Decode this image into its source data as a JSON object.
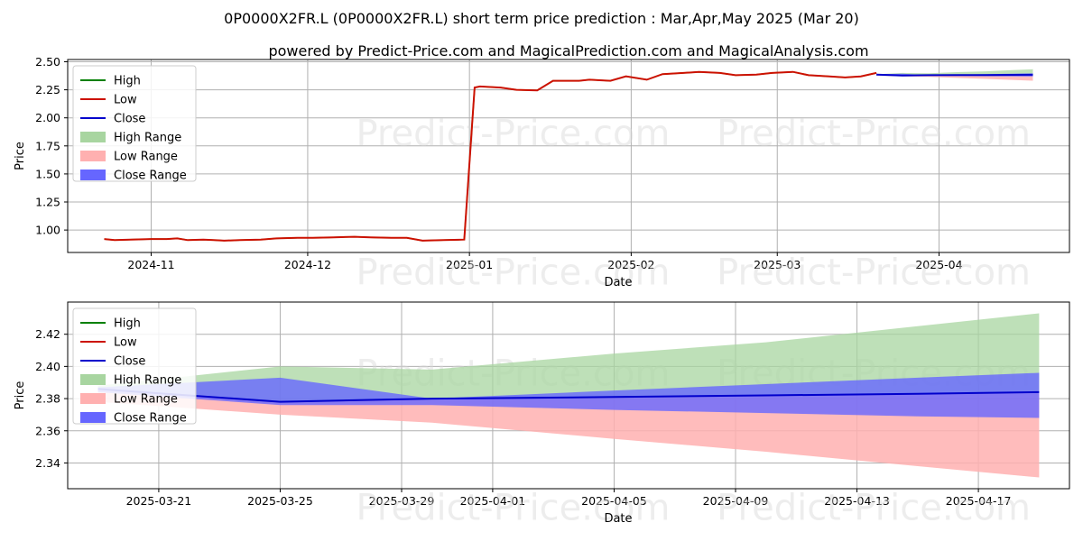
{
  "title": "0P0000X2FR.L (0P0000X2FR.L) short term price prediction : Mar,Apr,May 2025 (Mar 20)",
  "subtitle": "powered by Predict-Price.com and MagicalPrediction.com and MagicalAnalysis.com",
  "watermark": "Predict-Price.com",
  "colors": {
    "high": "#008000",
    "low": "#cc1100",
    "close": "#0000cc",
    "high_range": "#a8d5a0",
    "low_range": "#ffb0b0",
    "close_range": "#6666ff"
  },
  "legend": [
    "High",
    "Low",
    "Close",
    "High Range",
    "Low Range",
    "Close Range"
  ],
  "chart_data": [
    {
      "type": "line",
      "xlabel": "Date",
      "ylabel": "Price",
      "xlim": [
        "2024-10-16",
        "2025-04-26"
      ],
      "ylim": [
        0.8,
        2.52
      ],
      "x_ticks": [
        "2024-11",
        "2024-12",
        "2025-01",
        "2025-02",
        "2025-03",
        "2025-04"
      ],
      "y_ticks": [
        "1.00",
        "1.25",
        "1.50",
        "1.75",
        "2.00",
        "2.25",
        "2.50"
      ],
      "grid": true,
      "legend_position": "top-left",
      "history": {
        "dates": [
          "2024-10-23",
          "2024-10-25",
          "2024-10-28",
          "2024-11-01",
          "2024-11-04",
          "2024-11-06",
          "2024-11-08",
          "2024-11-11",
          "2024-11-13",
          "2024-11-15",
          "2024-11-18",
          "2024-11-22",
          "2024-11-25",
          "2024-11-29",
          "2024-12-02",
          "2024-12-06",
          "2024-12-10",
          "2024-12-13",
          "2024-12-17",
          "2024-12-20",
          "2024-12-23",
          "2024-12-27",
          "2024-12-31",
          "2025-01-02",
          "2025-01-03",
          "2025-01-07",
          "2025-01-10",
          "2025-01-14",
          "2025-01-17",
          "2025-01-22",
          "2025-01-24",
          "2025-01-28",
          "2025-01-31",
          "2025-02-04",
          "2025-02-07",
          "2025-02-11",
          "2025-02-14",
          "2025-02-18",
          "2025-02-21",
          "2025-02-25",
          "2025-02-28",
          "2025-03-04",
          "2025-03-07",
          "2025-03-11",
          "2025-03-14",
          "2025-03-17",
          "2025-03-20"
        ],
        "values": [
          0.92,
          0.91,
          0.915,
          0.92,
          0.92,
          0.925,
          0.91,
          0.915,
          0.91,
          0.905,
          0.91,
          0.915,
          0.925,
          0.93,
          0.93,
          0.935,
          0.94,
          0.935,
          0.93,
          0.93,
          0.905,
          0.91,
          0.915,
          2.27,
          2.28,
          2.27,
          2.25,
          2.245,
          2.33,
          2.33,
          2.34,
          2.33,
          2.37,
          2.34,
          2.39,
          2.4,
          2.41,
          2.4,
          2.38,
          2.385,
          2.4,
          2.41,
          2.38,
          2.37,
          2.36,
          2.37,
          2.4
        ]
      },
      "forecast": {
        "dates": [
          "2025-03-20",
          "2025-03-25",
          "2025-03-30",
          "2025-04-05",
          "2025-04-10",
          "2025-04-15",
          "2025-04-19"
        ],
        "close": [
          2.385,
          2.378,
          2.38,
          2.381,
          2.382,
          2.383,
          2.384
        ],
        "high_upper": [
          2.388,
          2.4,
          2.398,
          2.408,
          2.415,
          2.425,
          2.433
        ],
        "low_lower": [
          2.378,
          2.37,
          2.365,
          2.355,
          2.347,
          2.338,
          2.331
        ],
        "close_upper": [
          2.388,
          2.393,
          2.38,
          2.385,
          2.389,
          2.393,
          2.396
        ],
        "close_lower": [
          2.383,
          2.376,
          2.376,
          2.373,
          2.371,
          2.369,
          2.368
        ]
      }
    },
    {
      "type": "line",
      "xlabel": "Date",
      "ylabel": "Price",
      "xlim": [
        "2025-03-18",
        "2025-04-20"
      ],
      "ylim": [
        2.324,
        2.44
      ],
      "x_ticks": [
        "2025-03-21",
        "2025-03-25",
        "2025-03-29",
        "2025-04-01",
        "2025-04-05",
        "2025-04-09",
        "2025-04-13",
        "2025-04-17"
      ],
      "y_ticks": [
        "2.34",
        "2.36",
        "2.38",
        "2.40",
        "2.42"
      ],
      "grid": true,
      "legend_position": "top-left",
      "forecast": {
        "dates": [
          "2025-03-19",
          "2025-03-25",
          "2025-03-30",
          "2025-04-05",
          "2025-04-10",
          "2025-04-15",
          "2025-04-19"
        ],
        "close": [
          2.386,
          2.378,
          2.38,
          2.381,
          2.382,
          2.383,
          2.384
        ],
        "high_upper": [
          2.388,
          2.4,
          2.398,
          2.408,
          2.415,
          2.425,
          2.433
        ],
        "low_lower": [
          2.378,
          2.37,
          2.365,
          2.355,
          2.347,
          2.338,
          2.331
        ],
        "close_upper": [
          2.387,
          2.393,
          2.38,
          2.385,
          2.389,
          2.393,
          2.396
        ],
        "close_lower": [
          2.384,
          2.376,
          2.376,
          2.373,
          2.371,
          2.369,
          2.368
        ]
      }
    }
  ]
}
